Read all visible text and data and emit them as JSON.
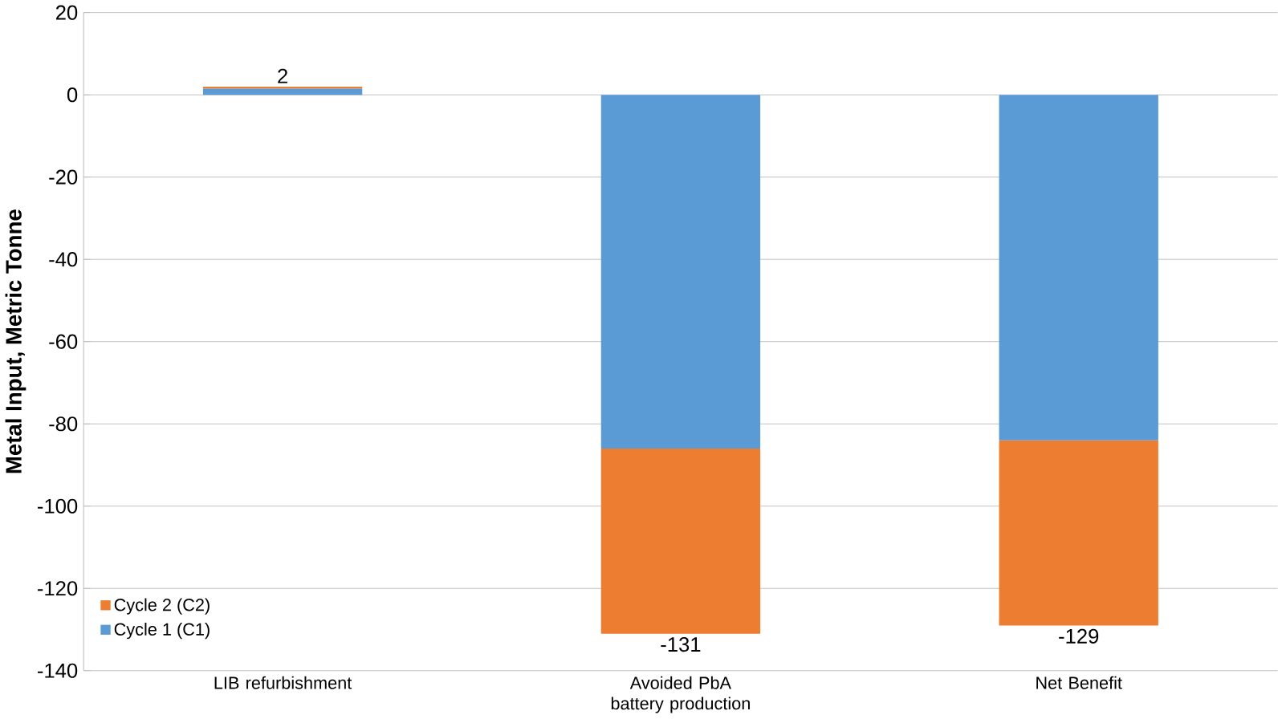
{
  "chart_data": {
    "type": "bar",
    "stacked": true,
    "ylabel": "Metal Input, Metric Tonne",
    "categories": [
      "LIB refurbishment",
      "Avoided PbA battery production",
      "Net Benefit"
    ],
    "series": [
      {
        "name": "Cycle 1 (C1)",
        "color": "#5b9bd5",
        "values": [
          1.5,
          -86,
          -84
        ]
      },
      {
        "name": "Cycle 2 (C2)",
        "color": "#ed7d31",
        "values": [
          0.5,
          -45,
          -45
        ]
      }
    ],
    "totals": [
      "2",
      "-131",
      "-129"
    ],
    "ylim": [
      -140,
      20
    ],
    "yticks": [
      -140,
      -120,
      -100,
      -80,
      -60,
      -40,
      -20,
      0,
      20
    ],
    "grid": "y",
    "legend": "bottom left"
  }
}
